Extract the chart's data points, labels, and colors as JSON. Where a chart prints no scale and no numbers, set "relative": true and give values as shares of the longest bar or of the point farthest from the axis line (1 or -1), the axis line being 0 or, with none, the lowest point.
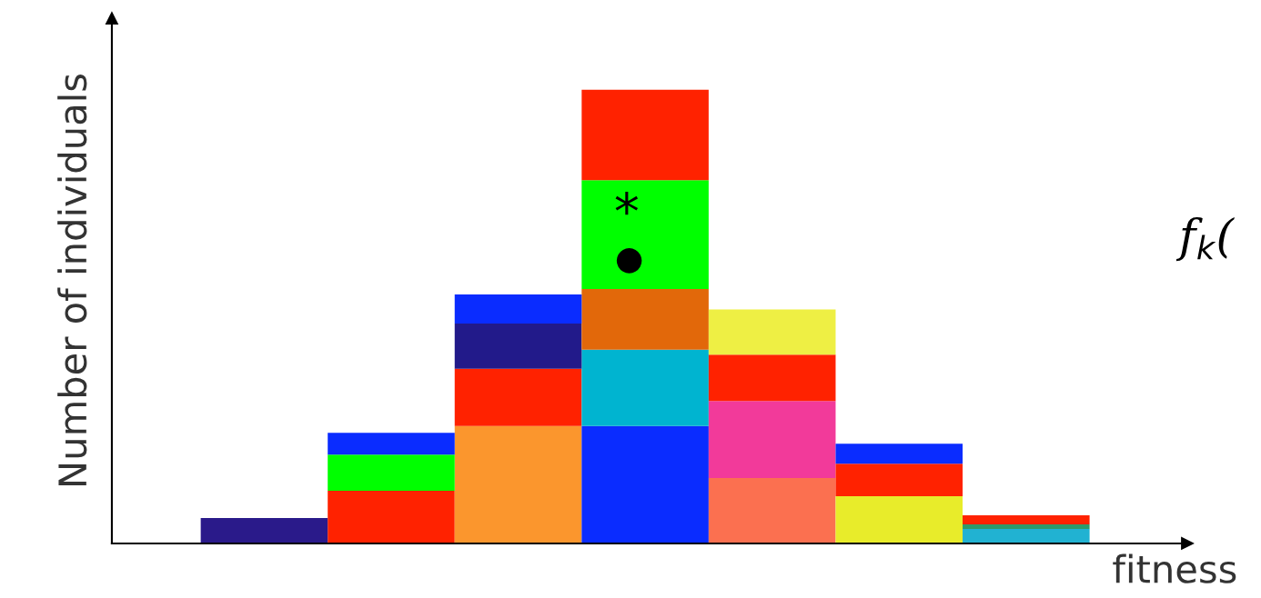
{
  "chart_data": {
    "type": "bar",
    "stacked": true,
    "relative": true,
    "xlabel": "fitness",
    "ylabel": "Number of individuals",
    "annotations": [
      "f$_{k}$(",
      "*",
      "●"
    ],
    "categories": [
      null,
      null,
      null,
      null,
      null,
      null,
      null
    ],
    "series": [
      {
        "colors": [
          "#2a1a8a",
          "#ff2200",
          "#fb962d",
          "#0a2cff",
          "#fb7050",
          "#e8ec2a",
          "#21b2d2"
        ],
        "values": [
          0.056,
          0.116,
          0.259,
          0.259,
          0.144,
          0.104,
          0.032
        ]
      },
      {
        "colors": [
          "#2a1a8a",
          "#00ff00",
          "#ff2200",
          "#00b4d0",
          "#f23a9a",
          "#ff2200",
          "#2e9a6a"
        ],
        "values": [
          0,
          0.08,
          0.126,
          0.168,
          0.17,
          0.072,
          0.01
        ]
      },
      {
        "colors": [
          "#2a1a8a",
          "#0a2cff",
          "#221a8a",
          "#e2680a",
          "#ff2200",
          "#0a2cff",
          "#ff2200"
        ],
        "values": [
          0,
          0.048,
          0.1,
          0.134,
          0.102,
          0.044,
          0.02
        ]
      },
      {
        "colors": [
          "#2a1a8a",
          "#0a2cff",
          "#0a2cff",
          "#00ff00",
          "#eeef44",
          "#0a2cff",
          "#ff2200"
        ],
        "values": [
          0,
          0,
          0.064,
          0.24,
          0.1,
          0,
          0
        ]
      },
      {
        "colors": [
          "#2a1a8a",
          "#0a2cff",
          "#0a2cff",
          "#ff2200",
          "#eeef44",
          "#0a2cff",
          "#ff2200"
        ],
        "values": [
          0,
          0,
          0,
          0.199,
          0,
          0,
          0
        ]
      }
    ]
  }
}
